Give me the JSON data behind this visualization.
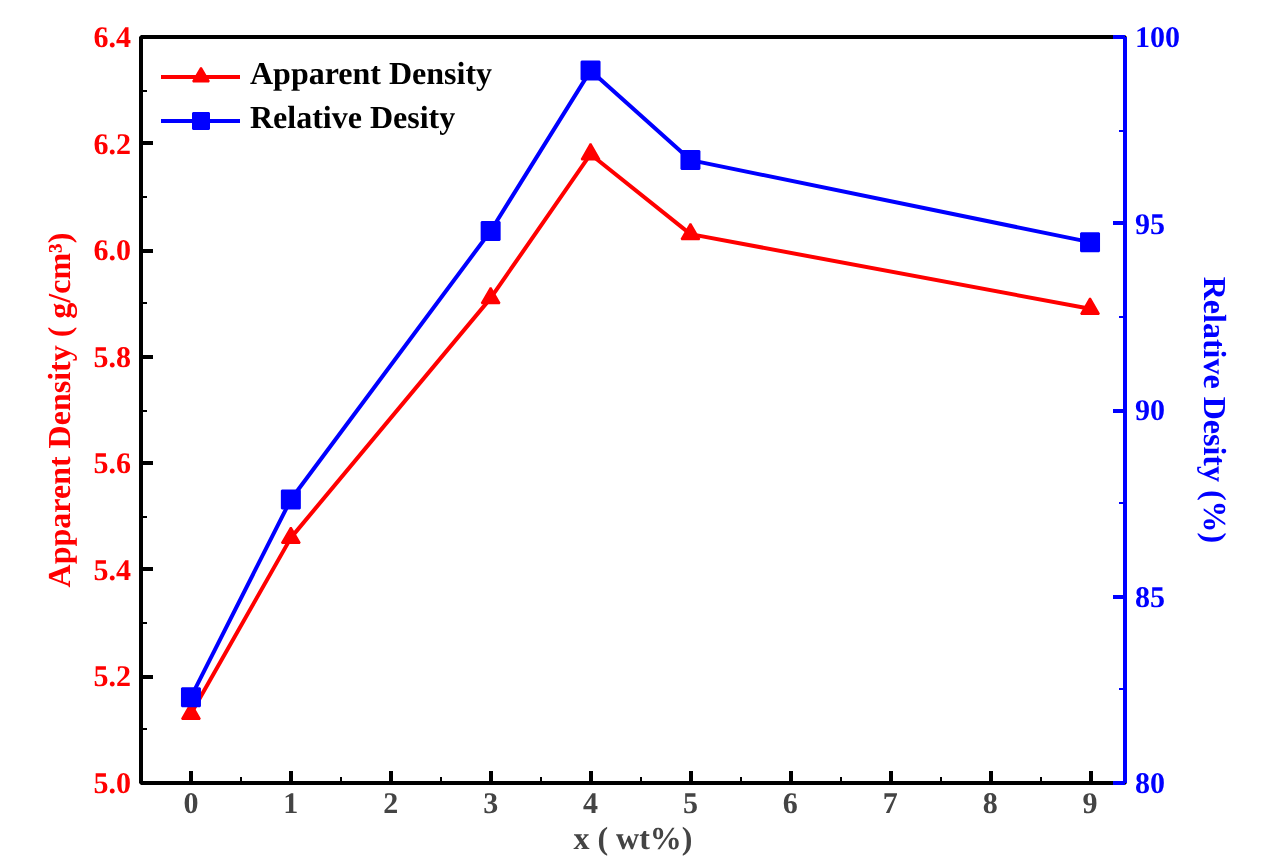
{
  "chart_data": {
    "type": "line",
    "xlabel": "x ( wt%)",
    "ylabel": "Apparent Density ( g/cm³)",
    "y2label": "Relative Desity (%)",
    "x": [
      0,
      1,
      3,
      4,
      5,
      9
    ],
    "series": [
      {
        "name": "Apparent Density",
        "color": "#ff0000",
        "marker": "triangle",
        "values": [
          5.13,
          5.46,
          5.91,
          6.18,
          6.03,
          5.89
        ]
      },
      {
        "name": "Relative Desity",
        "color": "#0000ff",
        "marker": "square",
        "axis": "y2",
        "values": [
          82.3,
          87.6,
          94.8,
          99.1,
          96.7,
          94.5
        ]
      }
    ],
    "xlim": [
      -0.5,
      9.35
    ],
    "xticks": [
      0,
      1,
      2,
      3,
      4,
      5,
      6,
      7,
      8,
      9
    ],
    "ylim": [
      5.0,
      6.4
    ],
    "yticks": [
      {
        "value": 5,
        "label": "5.0"
      },
      5.2,
      5.4,
      5.6,
      5.8,
      {
        "value": 6,
        "label": "6.0"
      },
      6.2,
      6.4
    ],
    "y2lim": [
      80,
      100
    ],
    "y2ticks": [
      80,
      85,
      90,
      95,
      100
    ],
    "grid": false,
    "legend": "top left",
    "line_style": "solid"
  }
}
